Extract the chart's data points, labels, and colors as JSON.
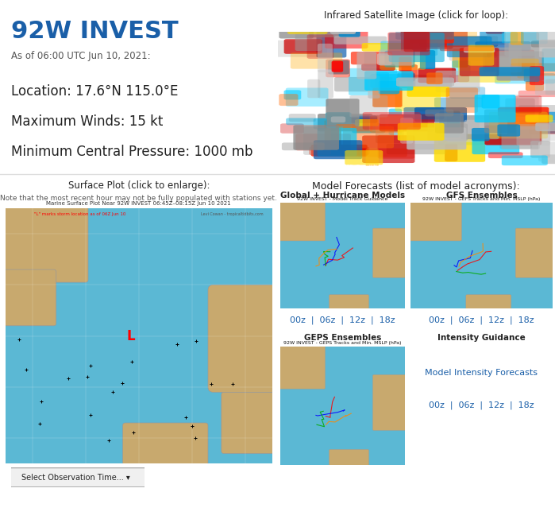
{
  "title": "92W INVEST",
  "title_color": "#1a5fa8",
  "subtitle": "As of 06:00 UTC Jun 10, 2021:",
  "info_lines": [
    "Location: 17.6°N 115.0°E",
    "Maximum Winds: 15 kt",
    "Minimum Central Pressure: 1000 mb"
  ],
  "sat_title": "Infrared Satellite Image (click for loop):",
  "surface_title": "Surface Plot (click to enlarge):",
  "surface_note": "Note that the most recent hour may not be fully populated with stations yet.",
  "surface_map_title": "Marine Surface Plot Near 92W INVEST 06:45Z–08:15Z Jun 10 2021",
  "surface_map_subtitle": "\"L\" marks storm location as of 06Z Jun 10",
  "surface_map_credit": "Levi Cowan - tropicaltidbits.com",
  "surface_dropdown": "Select Observation Time... ▾",
  "model_forecasts_text": "Model Forecasts (list of model acronyms):",
  "global_label": "Global + Hurricane Models",
  "gfs_label": "GFS Ensembles",
  "geps_label": "GEPS Ensembles",
  "intensity_label": "Intensity Guidance",
  "intensity_link": "Model Intensity Forecasts",
  "time_links": [
    "00z",
    "06z",
    "12z",
    "18z"
  ],
  "bg_color": "#ffffff",
  "link_color": "#1a5fa8",
  "text_color": "#222222",
  "gray_text": "#555555",
  "map_bg_color": "#5bb8d4",
  "land_color": "#c8a96e",
  "main_title_fontsize": 22,
  "info_fontsize": 12
}
